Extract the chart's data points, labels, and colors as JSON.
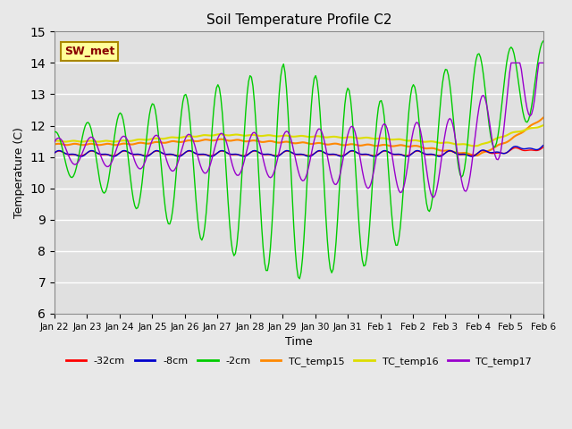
{
  "title": "Soil Temperature Profile C2",
  "xlabel": "Time",
  "ylabel": "Temperature (C)",
  "ylim": [
    6.0,
    15.0
  ],
  "yticks": [
    6.0,
    7.0,
    8.0,
    9.0,
    10.0,
    11.0,
    12.0,
    13.0,
    14.0,
    15.0
  ],
  "series_colors": {
    "-32cm": "#ff0000",
    "-8cm": "#0000cc",
    "-2cm": "#00cc00",
    "TC_temp15": "#ff8800",
    "TC_temp16": "#dddd00",
    "TC_temp17": "#9900cc"
  },
  "legend_label": "SW_met",
  "legend_box_color": "#ffff99",
  "legend_box_edge": "#aa8800",
  "background_color": "#e8e8e8",
  "plot_bg_color": "#e0e0e0",
  "grid_color": "#ffffff",
  "x_tick_labels": [
    "Jan 22",
    "Jan 23",
    "Jan 24",
    "Jan 25",
    "Jan 26",
    "Jan 27",
    "Jan 28",
    "Jan 29",
    "Jan 30",
    "Jan 31",
    "Feb 1",
    "Feb 2",
    "Feb 3",
    "Feb 4",
    "Feb 5",
    "Feb 6"
  ],
  "n_points": 336
}
